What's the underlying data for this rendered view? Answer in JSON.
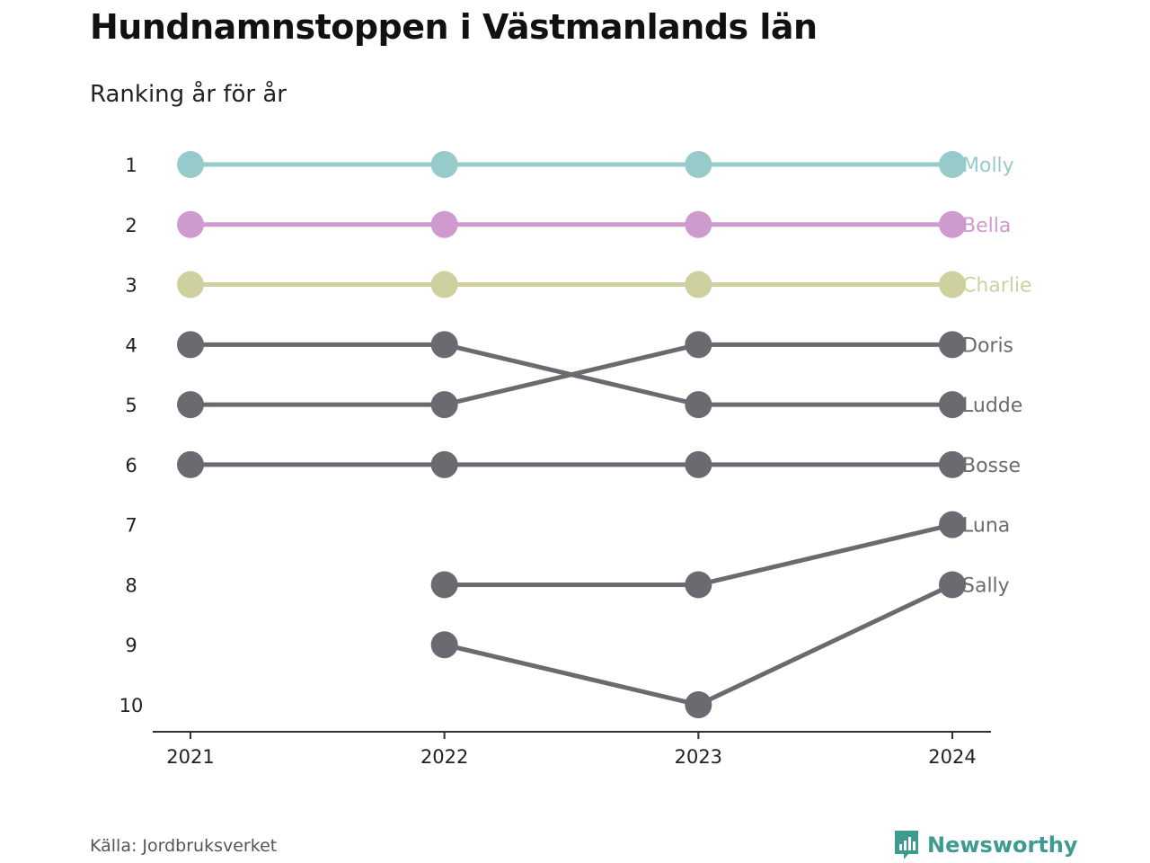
{
  "header": {
    "title": "Hundnamnstoppen i Västmanlands län",
    "subtitle": "Ranking år för år"
  },
  "footer": {
    "source": "Källa: Jordbruksverket",
    "brand": "Newsworthy",
    "brand_icon": "bar-chart-badge-icon",
    "brand_color": "#3f9b8f"
  },
  "chart_data": {
    "type": "line",
    "title": "Hundnamnstoppen i Västmanlands län",
    "subtitle": "Ranking år för år",
    "xlabel": "",
    "ylabel": "",
    "x": [
      "2021",
      "2022",
      "2023",
      "2024"
    ],
    "y_ticks": [
      "1",
      "2",
      "3",
      "4",
      "5",
      "6",
      "7",
      "8",
      "9",
      "10"
    ],
    "ylim": [
      1,
      10
    ],
    "y_reversed": true,
    "grid": false,
    "legend": "labels at right end of lines",
    "series": [
      {
        "name": "Molly",
        "values": [
          1,
          1,
          1,
          1
        ],
        "color": "#97cbc9"
      },
      {
        "name": "Bella",
        "values": [
          2,
          2,
          2,
          2
        ],
        "color": "#cf9bce"
      },
      {
        "name": "Charlie",
        "values": [
          3,
          3,
          3,
          3
        ],
        "color": "#cfd0a0"
      },
      {
        "name": "Doris",
        "values": [
          5,
          5,
          4,
          4
        ],
        "color": "#6b6a70"
      },
      {
        "name": "Ludde",
        "values": [
          4,
          4,
          5,
          5
        ],
        "color": "#6b6a70"
      },
      {
        "name": "Bosse",
        "values": [
          6,
          6,
          6,
          6
        ],
        "color": "#6b6a70"
      },
      {
        "name": "Luna",
        "values": [
          null,
          8,
          8,
          7
        ],
        "color": "#6b6a70"
      },
      {
        "name": "Sally",
        "values": [
          null,
          9,
          10,
          8
        ],
        "color": "#6b6a70"
      }
    ]
  }
}
